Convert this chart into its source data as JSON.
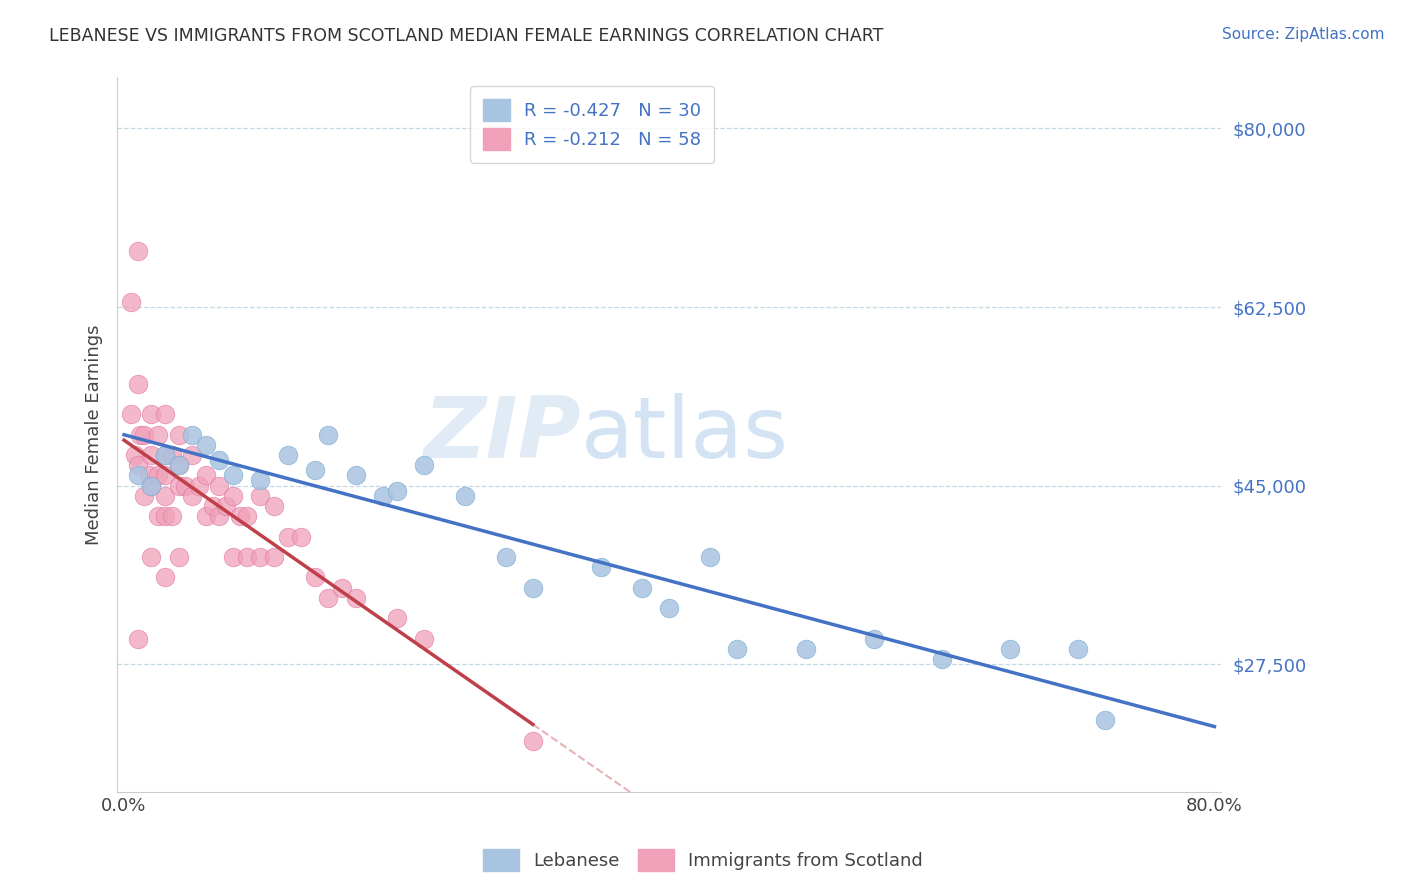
{
  "title": "LEBANESE VS IMMIGRANTS FROM SCOTLAND MEDIAN FEMALE EARNINGS CORRELATION CHART",
  "source": "Source: ZipAtlas.com",
  "ylabel": "Median Female Earnings",
  "xlim": [
    0.0,
    0.8
  ],
  "ylim": [
    15000,
    85000
  ],
  "yticks": [
    27500,
    45000,
    62500,
    80000
  ],
  "ytick_labels": [
    "$27,500",
    "$45,000",
    "$62,500",
    "$80,000"
  ],
  "xticks": [
    0.0,
    0.1,
    0.2,
    0.3,
    0.4,
    0.5,
    0.6,
    0.7,
    0.8
  ],
  "xtick_labels": [
    "0.0%",
    "",
    "",
    "",
    "",
    "",
    "",
    "",
    "80.0%"
  ],
  "legend_entries": [
    {
      "R": -0.427,
      "N": 30
    },
    {
      "R": -0.212,
      "N": 58
    }
  ],
  "blue_color": "#4472C4",
  "pink_color": "#C0404A",
  "dot_blue": "#a8c4e0",
  "dot_pink": "#f0a0b8",
  "watermark_zip": "ZIP",
  "watermark_atlas": "atlas",
  "blue_scatter_x": [
    0.01,
    0.02,
    0.03,
    0.04,
    0.05,
    0.06,
    0.07,
    0.08,
    0.1,
    0.12,
    0.14,
    0.15,
    0.17,
    0.19,
    0.2,
    0.22,
    0.25,
    0.28,
    0.3,
    0.35,
    0.38,
    0.4,
    0.43,
    0.45,
    0.5,
    0.55,
    0.6,
    0.65,
    0.7,
    0.72
  ],
  "blue_scatter_y": [
    46000,
    45000,
    48000,
    47000,
    50000,
    49000,
    47500,
    46000,
    45500,
    48000,
    46500,
    50000,
    46000,
    44000,
    44500,
    47000,
    44000,
    38000,
    35000,
    37000,
    35000,
    33000,
    38000,
    29000,
    29000,
    30000,
    28000,
    29000,
    29000,
    22000
  ],
  "pink_scatter_x": [
    0.005,
    0.005,
    0.008,
    0.01,
    0.01,
    0.01,
    0.01,
    0.012,
    0.015,
    0.015,
    0.018,
    0.02,
    0.02,
    0.02,
    0.02,
    0.025,
    0.025,
    0.025,
    0.03,
    0.03,
    0.03,
    0.03,
    0.03,
    0.03,
    0.035,
    0.035,
    0.04,
    0.04,
    0.04,
    0.04,
    0.045,
    0.05,
    0.05,
    0.055,
    0.06,
    0.06,
    0.065,
    0.07,
    0.07,
    0.075,
    0.08,
    0.08,
    0.085,
    0.09,
    0.09,
    0.1,
    0.1,
    0.11,
    0.11,
    0.12,
    0.13,
    0.14,
    0.15,
    0.16,
    0.17,
    0.2,
    0.22,
    0.3
  ],
  "pink_scatter_y": [
    63000,
    52000,
    48000,
    68000,
    55000,
    47000,
    30000,
    50000,
    50000,
    44000,
    46000,
    52000,
    48000,
    45000,
    38000,
    50000,
    46000,
    42000,
    52000,
    48000,
    46000,
    44000,
    42000,
    36000,
    48000,
    42000,
    50000,
    47000,
    45000,
    38000,
    45000,
    48000,
    44000,
    45000,
    46000,
    42000,
    43000,
    45000,
    42000,
    43000,
    44000,
    38000,
    42000,
    42000,
    38000,
    44000,
    38000,
    43000,
    38000,
    40000,
    40000,
    36000,
    34000,
    35000,
    34000,
    32000,
    30000,
    20000
  ]
}
